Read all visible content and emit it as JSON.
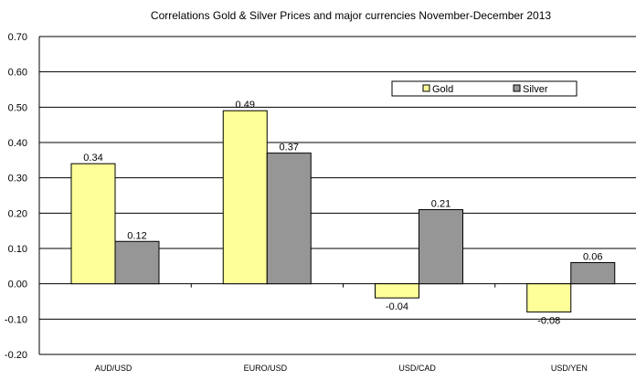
{
  "chart_data": {
    "type": "bar",
    "title": "Correlations Gold & Silver Prices and major currencies November-December 2013",
    "xlabel": "",
    "ylabel": "",
    "categories": [
      "AUD/USD",
      "EURO/USD",
      "USD/CAD",
      "USD/YEN"
    ],
    "series": [
      {
        "name": "Gold",
        "color": "#ffff99",
        "values": [
          0.34,
          0.49,
          -0.04,
          -0.08
        ],
        "labels": [
          "0.34",
          "0.49",
          "-0.04",
          "-0.08"
        ]
      },
      {
        "name": "Silver",
        "color": "#969696",
        "values": [
          0.12,
          0.37,
          0.21,
          0.06
        ],
        "labels": [
          "0.12",
          "0.37",
          "0.21",
          "0.06"
        ]
      }
    ],
    "ylim": [
      -0.2,
      0.7
    ],
    "yticks": [
      "0.70",
      "0.60",
      "0.50",
      "0.40",
      "0.30",
      "0.20",
      "0.10",
      "0.00",
      "-0.10",
      "-0.20"
    ],
    "ytick_values": [
      0.7,
      0.6,
      0.5,
      0.4,
      0.3,
      0.2,
      0.1,
      0.0,
      -0.1,
      -0.2
    ],
    "grid": true,
    "legend": "top-right"
  }
}
